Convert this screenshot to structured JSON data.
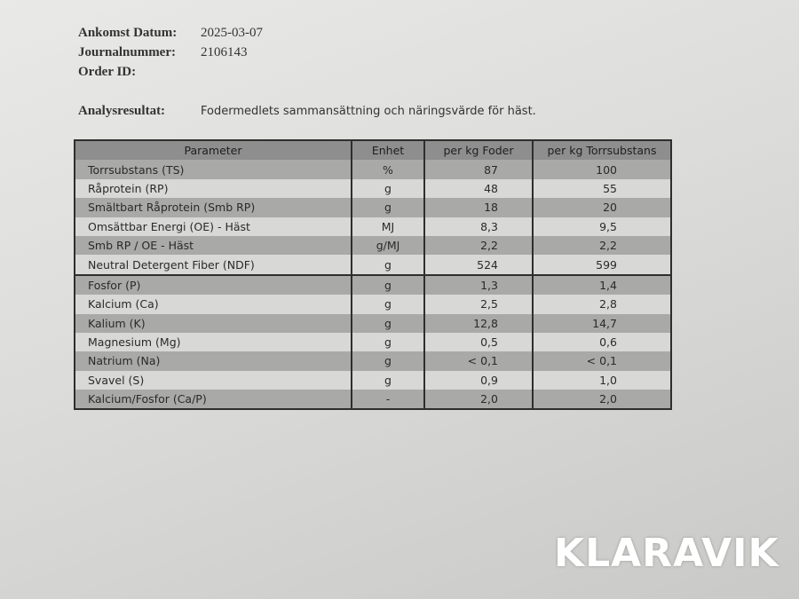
{
  "header": {
    "fields": [
      {
        "label": "Ankomst Datum:",
        "value": "2025-03-07"
      },
      {
        "label": "Journalnummer:",
        "value": "2106143"
      },
      {
        "label": "Order ID:"
      }
    ],
    "analysis": {
      "label": "Analysresultat:",
      "text": "Fodermedlets sammansättning och näringsvärde för häst."
    }
  },
  "table": {
    "columns": [
      "Parameter",
      "Enhet",
      "per kg Foder",
      "per kg Torrsubstans"
    ],
    "rows": [
      [
        "Torrsubstans  (TS)",
        "%",
        "87",
        "100"
      ],
      [
        "Råprotein  (RP)",
        "g",
        "48",
        "55"
      ],
      [
        "Smältbart Råprotein  (Smb RP)",
        "g",
        "18",
        "20"
      ],
      [
        "Omsättbar Energi (OE) - Häst",
        "MJ",
        "8,3",
        "9,5"
      ],
      [
        "Smb RP / OE - Häst",
        "g/MJ",
        "2,2",
        "2,2"
      ],
      [
        "Neutral Detergent Fiber  (NDF)",
        "g",
        "524",
        "599"
      ],
      [
        "Fosfor  (P)",
        "g",
        "1,3",
        "1,4"
      ],
      [
        "Kalcium  (Ca)",
        "g",
        "2,5",
        "2,8"
      ],
      [
        "Kalium  (K)",
        "g",
        "12,8",
        "14,7"
      ],
      [
        "Magnesium  (Mg)",
        "g",
        "0,5",
        "0,6"
      ],
      [
        "Natrium  (Na)",
        "g",
        "< 0,1",
        "< 0,1"
      ],
      [
        "Svavel  (S)",
        "g",
        "0,9",
        "1,0"
      ],
      [
        "Kalcium/Fosfor  (Ca/P)",
        "-",
        "2,0",
        "2,0"
      ]
    ]
  },
  "watermark": "KLARAVIK"
}
